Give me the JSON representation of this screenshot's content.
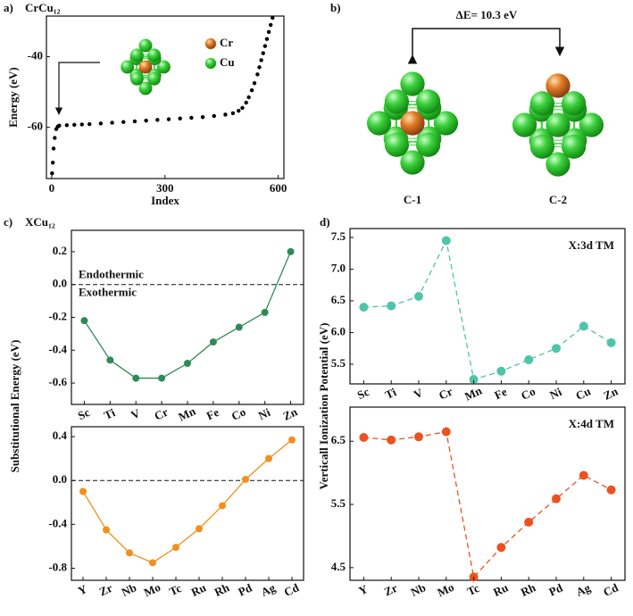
{
  "panel_labels": [
    "a)",
    "b)",
    "c)",
    "d)"
  ],
  "diagram": {
    "energy_label": "ΔE= 10.3 eV",
    "structures": [
      "C-1",
      "C-2"
    ]
  },
  "chart_data": [
    {
      "type": "scatter",
      "title": "CrCu₁₂",
      "xlabel": "Index",
      "ylabel": "Energy (eV)",
      "color": "#000000",
      "x": [
        1,
        3,
        5,
        8,
        12,
        16,
        20,
        40,
        60,
        80,
        100,
        130,
        160,
        190,
        220,
        250,
        280,
        310,
        340,
        370,
        400,
        430,
        460,
        480,
        495,
        505,
        515,
        522,
        530,
        537,
        545,
        550,
        555,
        560,
        565,
        570,
        575,
        580,
        585
      ],
      "values": [
        -73,
        -70,
        -66,
        -63,
        -60.5,
        -59.8,
        -59.5,
        -59.4,
        -59.3,
        -59.2,
        -59.1,
        -58.9,
        -58.7,
        -58.5,
        -58.3,
        -58.1,
        -57.9,
        -57.7,
        -57.5,
        -57.3,
        -57.1,
        -56.8,
        -56.4,
        -56,
        -55.3,
        -54.5,
        -53,
        -51.5,
        -49.5,
        -47.5,
        -45,
        -43,
        -41,
        -39,
        -37,
        -35,
        -33,
        -31,
        -29
      ],
      "xlim": [
        -14,
        615
      ],
      "ylim": [
        -74.5,
        -28.5
      ],
      "xticks": [
        0,
        300,
        600
      ],
      "yticks": [
        -60,
        -40
      ],
      "legend": [
        {
          "name": "Cr",
          "color": "#e07a26"
        },
        {
          "name": "Cu",
          "color": "#3ccf3c"
        }
      ]
    },
    {
      "type": "line",
      "title": "XCu₁₂",
      "ylabel": "Substitutional Energy (eV)",
      "color": "#2e8b57",
      "line_style": "solid",
      "categories": [
        "Sc",
        "Ti",
        "V",
        "Cr",
        "Mn",
        "Fe",
        "Co",
        "Ni",
        "Zn"
      ],
      "values": [
        -0.22,
        -0.46,
        -0.57,
        -0.57,
        -0.48,
        -0.35,
        -0.26,
        -0.17,
        0.2
      ],
      "ylim": [
        -0.73,
        0.33
      ],
      "yticks": [
        -0.6,
        -0.4,
        -0.2,
        {
          "value": 0,
          "label": "0.0"
        },
        0.2
      ],
      "reference_line": 0,
      "annotations": [
        "Endothermic",
        "Exothermic"
      ]
    },
    {
      "type": "line",
      "color": "#f0901e",
      "line_style": "solid",
      "categories": [
        "Y",
        "Zr",
        "Nb",
        "Mo",
        "Tc",
        "Ru",
        "Rh",
        "Pd",
        "Ag",
        "Cd"
      ],
      "values": [
        -0.1,
        -0.45,
        -0.66,
        -0.75,
        -0.61,
        -0.44,
        -0.23,
        0.01,
        0.2,
        0.37
      ],
      "ylim": [
        -0.91,
        0.49
      ],
      "yticks": [
        -0.8,
        -0.4,
        {
          "value": 0,
          "label": "0.0"
        },
        0.4
      ],
      "reference_line": 0
    },
    {
      "type": "line",
      "ylabel": "Verticall Ionization Potential (eV)",
      "color": "#4fc4a8",
      "line_style": "dashed",
      "categories": [
        "Sc",
        "Ti",
        "V",
        "Cr",
        "Mn",
        "Fe",
        "Co",
        "Ni",
        "Cu",
        "Zn"
      ],
      "values": [
        6.4,
        6.42,
        6.57,
        7.45,
        5.26,
        5.39,
        5.57,
        5.75,
        6.1,
        5.84
      ],
      "ylim": [
        5.19,
        7.64
      ],
      "yticks": [
        5.5,
        {
          "value": 6,
          "label": "6.0"
        },
        6.5,
        {
          "value": 7,
          "label": "7.0"
        },
        7.5
      ],
      "annotations": [
        "X:3d TM"
      ]
    },
    {
      "type": "line",
      "color": "#ea5320",
      "line_style": "dashed",
      "categories": [
        "Y",
        "Zr",
        "Nb",
        "Mo",
        "Tc",
        "Ru",
        "Rh",
        "Pd",
        "Ag",
        "Cd"
      ],
      "values": [
        6.56,
        6.52,
        6.57,
        6.65,
        4.35,
        4.82,
        5.22,
        5.59,
        5.96,
        5.73
      ],
      "ylim": [
        4.3,
        7.04
      ],
      "yticks": [
        4.5,
        5.5,
        6.5
      ],
      "annotations": [
        "X:4d TM"
      ]
    }
  ]
}
